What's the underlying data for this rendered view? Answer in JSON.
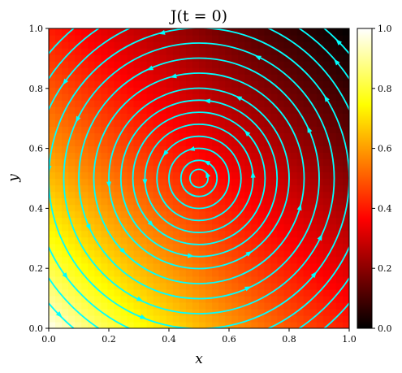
{
  "chart_data": {
    "type": "heatmap",
    "title": "J(t = 0)",
    "xlabel": "x",
    "ylabel": "y",
    "xlim": [
      0.0,
      1.0
    ],
    "ylim": [
      0.0,
      1.0
    ],
    "x_ticks": [
      "0.0",
      "0.2",
      "0.4",
      "0.6",
      "0.8",
      "1.0"
    ],
    "y_ticks": [
      "0.0",
      "0.2",
      "0.4",
      "0.6",
      "0.8",
      "1.0"
    ],
    "colorbar": {
      "range": [
        0.0,
        1.0
      ],
      "ticks": [
        "0.0",
        "0.2",
        "0.4",
        "0.6",
        "0.8",
        "1.0"
      ],
      "colormap": "hot"
    },
    "field": {
      "max_value": 1.0,
      "max_location": [
        0.0,
        0.0
      ],
      "min_value": 0.0,
      "min_location": [
        1.0,
        1.0
      ]
    },
    "streamlines": {
      "color": "#00ffff",
      "center": [
        0.5,
        0.5
      ],
      "rotation": "counterclockwise",
      "radii": [
        0.03,
        0.06,
        0.1,
        0.14,
        0.18,
        0.22,
        0.26,
        0.3,
        0.35,
        0.4,
        0.45,
        0.5,
        0.55,
        0.6,
        0.65
      ]
    },
    "grid": false
  }
}
